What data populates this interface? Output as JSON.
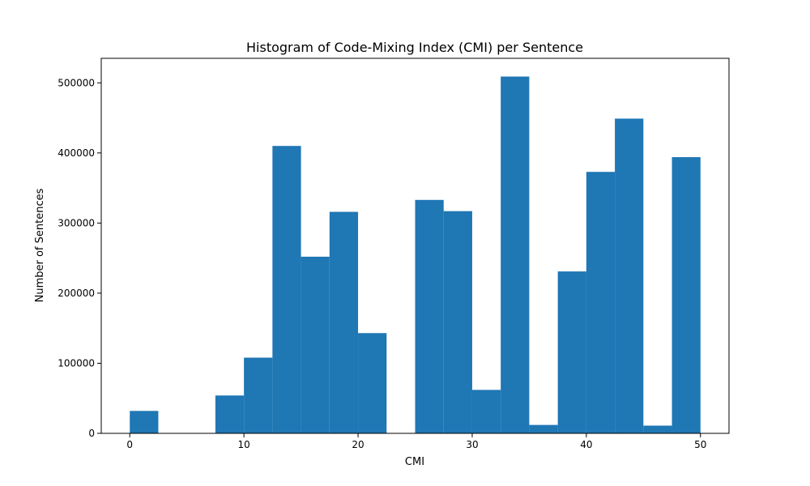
{
  "chart_data": {
    "type": "bar",
    "title": "Histogram of Code-Mixing Index (CMI) per Sentence",
    "xlabel": "CMI",
    "ylabel": "Number of Sentences",
    "xlim": [
      -2.5,
      52.5
    ],
    "ylim": [
      0,
      535000
    ],
    "x_ticks": [
      0,
      10,
      20,
      30,
      40,
      50
    ],
    "y_ticks": [
      0,
      100000,
      200000,
      300000,
      400000,
      500000
    ],
    "bin_edges": [
      0,
      2.5,
      5,
      7.5,
      10,
      12.5,
      15,
      17.5,
      20,
      22.5,
      25,
      27.5,
      30,
      32.5,
      35,
      37.5,
      40,
      42.5,
      45,
      47.5,
      50
    ],
    "values": [
      32000,
      0,
      0,
      54000,
      108000,
      410000,
      252000,
      316000,
      143000,
      0,
      333000,
      317000,
      62000,
      509000,
      12000,
      231000,
      373000,
      449000,
      11000,
      394000
    ],
    "bar_color": "#1f77b4",
    "grid": false,
    "legend": "none"
  }
}
